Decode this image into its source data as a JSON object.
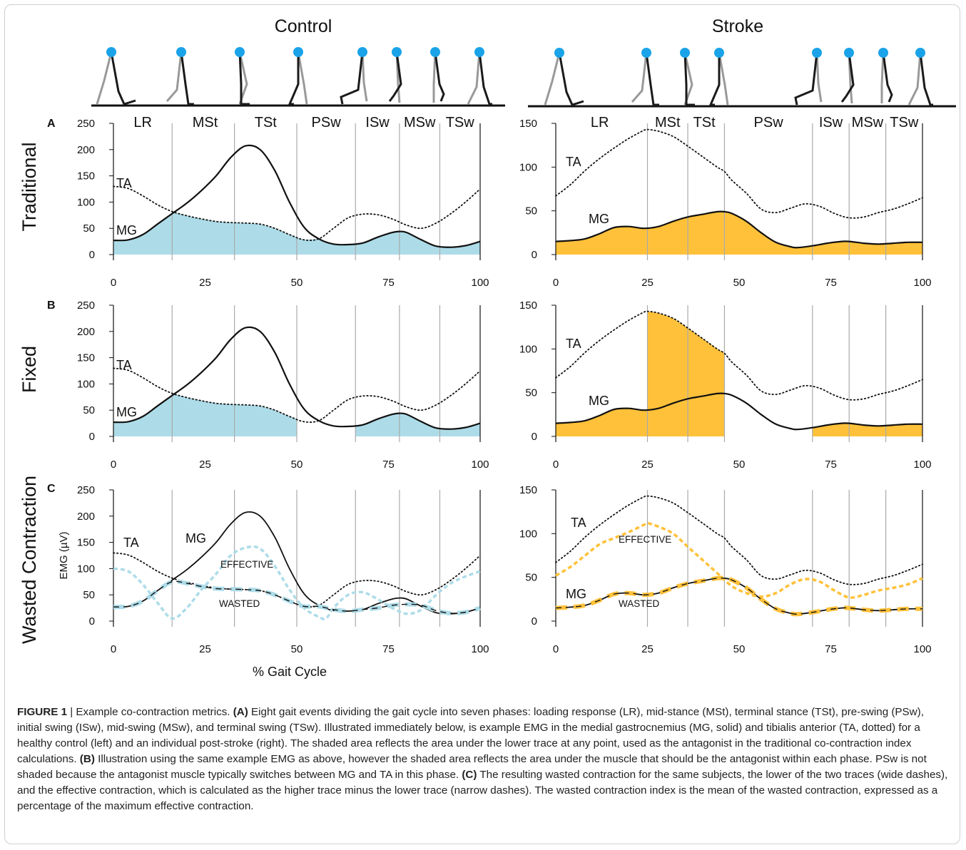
{
  "figure": {
    "column_titles": [
      "Control",
      "Stroke"
    ],
    "row_titles": [
      "Traditional",
      "Fixed",
      "Wasted Contraction"
    ],
    "panel_letters": [
      "A",
      "B",
      "C"
    ],
    "xlabel": "% Gait Cycle",
    "ylabel": "EMG (µV)",
    "trace_labels": {
      "ta": "TA",
      "mg": "MG",
      "effective": "EFFECTIVE",
      "wasted": "WASTED"
    },
    "colors": {
      "control_fill": "#ADDCE8",
      "stroke_fill": "#FFC13A",
      "stick_light": "#999999",
      "stick_dark": "#1a1a1a",
      "head": "#1AA3E8",
      "event_line": "#aaaaaa"
    }
  },
  "chart_data": [
    {
      "type": "line",
      "panel": "control",
      "x_ticks": [
        0,
        25,
        50,
        75,
        100
      ],
      "y_ticks": [
        0,
        50,
        100,
        150,
        200,
        250
      ],
      "xlim": [
        0,
        100
      ],
      "ylim": [
        0,
        250
      ],
      "gait_events": [
        16,
        33,
        50,
        66,
        78,
        89
      ],
      "phases": [
        {
          "label": "LR",
          "center": 8
        },
        {
          "label": "MSt",
          "center": 25
        },
        {
          "label": "TSt",
          "center": 41.5
        },
        {
          "label": "PSw",
          "center": 58
        },
        {
          "label": "ISw",
          "center": 72
        },
        {
          "label": "MSw",
          "center": 83.5
        },
        {
          "label": "TSw",
          "center": 94.5
        }
      ],
      "series": [
        {
          "name": "MG",
          "x": [
            0,
            4,
            8,
            12,
            16,
            20,
            24,
            28,
            32,
            36,
            40,
            44,
            48,
            52,
            56,
            60,
            64,
            68,
            72,
            76,
            78,
            80,
            84,
            88,
            92,
            96,
            100
          ],
          "y": [
            27,
            28,
            38,
            58,
            78,
            98,
            122,
            150,
            185,
            207,
            200,
            160,
            100,
            52,
            30,
            20,
            19,
            22,
            33,
            42,
            44,
            42,
            28,
            16,
            14,
            17,
            25
          ]
        },
        {
          "name": "TA",
          "x": [
            0,
            4,
            8,
            12,
            16,
            20,
            24,
            28,
            32,
            36,
            40,
            44,
            48,
            52,
            56,
            60,
            64,
            68,
            72,
            76,
            80,
            84,
            88,
            92,
            96,
            100
          ],
          "y": [
            130,
            126,
            112,
            95,
            82,
            74,
            68,
            63,
            61,
            60,
            58,
            50,
            38,
            28,
            30,
            50,
            70,
            77,
            76,
            68,
            56,
            50,
            60,
            78,
            100,
            125
          ]
        },
        {
          "name": "EFFECTIVE",
          "x": [
            0,
            4,
            8,
            12,
            16,
            20,
            24,
            28,
            32,
            36,
            40,
            44,
            48,
            52,
            56,
            58,
            60,
            64,
            68,
            72,
            76,
            80,
            84,
            88,
            92,
            96,
            100
          ],
          "y": [
            100,
            95,
            70,
            35,
            5,
            25,
            60,
            90,
            125,
            140,
            138,
            105,
            60,
            25,
            8,
            5,
            25,
            50,
            55,
            42,
            25,
            14,
            22,
            50,
            72,
            85,
            95
          ]
        },
        {
          "name": "WASTED",
          "x": [
            0,
            4,
            8,
            12,
            16,
            20,
            24,
            28,
            32,
            36,
            40,
            44,
            48,
            52,
            56,
            60,
            64,
            68,
            72,
            76,
            80,
            84,
            88,
            92,
            96,
            100
          ],
          "y": [
            27,
            28,
            38,
            58,
            75,
            72,
            66,
            62,
            61,
            60,
            58,
            50,
            38,
            28,
            28,
            22,
            19,
            22,
            25,
            30,
            32,
            30,
            20,
            15,
            17,
            25
          ]
        }
      ],
      "fills": {
        "traditional": [
          [
            0,
            100
          ]
        ],
        "fixed": [
          [
            0,
            50
          ],
          [
            66,
            100
          ]
        ]
      }
    },
    {
      "type": "line",
      "panel": "stroke",
      "x_ticks": [
        0,
        25,
        50,
        75,
        100
      ],
      "y_ticks": [
        0,
        50,
        100,
        150
      ],
      "xlim": [
        0,
        100
      ],
      "ylim": [
        0,
        150
      ],
      "gait_events": [
        25,
        36,
        46,
        70,
        80,
        90
      ],
      "phases": [
        {
          "label": "LR",
          "center": 12
        },
        {
          "label": "MSt",
          "center": 30.5
        },
        {
          "label": "TSt",
          "center": 40.5
        },
        {
          "label": "PSw",
          "center": 58
        },
        {
          "label": "ISw",
          "center": 75
        },
        {
          "label": "MSw",
          "center": 85
        },
        {
          "label": "TSw",
          "center": 95
        }
      ],
      "series": [
        {
          "name": "MG",
          "x": [
            0,
            4,
            8,
            12,
            16,
            20,
            24,
            28,
            32,
            36,
            40,
            44,
            46,
            48,
            52,
            56,
            60,
            64,
            66,
            70,
            74,
            78,
            80,
            84,
            88,
            92,
            96,
            100
          ],
          "y": [
            15,
            16,
            18,
            24,
            31,
            32,
            30,
            32,
            38,
            43,
            46,
            49,
            49,
            47,
            38,
            25,
            14,
            9,
            8,
            10,
            13,
            15,
            15,
            13,
            12,
            13,
            14,
            14
          ]
        },
        {
          "name": "TA",
          "x": [
            0,
            4,
            8,
            12,
            16,
            20,
            24,
            25,
            28,
            32,
            36,
            40,
            44,
            46,
            48,
            52,
            56,
            60,
            64,
            68,
            72,
            76,
            80,
            84,
            88,
            92,
            96,
            100
          ],
          "y": [
            67,
            80,
            96,
            110,
            122,
            133,
            142,
            143,
            141,
            135,
            124,
            112,
            100,
            95,
            85,
            70,
            52,
            48,
            53,
            58,
            55,
            47,
            42,
            43,
            48,
            52,
            58,
            65
          ]
        },
        {
          "name": "EFFECTIVE",
          "x": [
            0,
            4,
            8,
            12,
            16,
            20,
            24,
            25,
            28,
            32,
            36,
            40,
            44,
            48,
            52,
            56,
            60,
            64,
            68,
            72,
            76,
            80,
            84,
            88,
            92,
            96,
            100
          ],
          "y": [
            52,
            62,
            75,
            88,
            95,
            102,
            110,
            112,
            108,
            100,
            85,
            70,
            55,
            40,
            32,
            28,
            32,
            42,
            48,
            45,
            35,
            27,
            30,
            35,
            38,
            42,
            49
          ]
        },
        {
          "name": "WASTED",
          "x": [
            0,
            4,
            8,
            12,
            16,
            20,
            24,
            28,
            32,
            36,
            40,
            44,
            46,
            48,
            52,
            56,
            60,
            64,
            66,
            70,
            74,
            78,
            80,
            84,
            88,
            92,
            96,
            100
          ],
          "y": [
            15,
            16,
            18,
            24,
            31,
            32,
            30,
            32,
            38,
            43,
            46,
            49,
            49,
            47,
            38,
            25,
            14,
            9,
            8,
            10,
            13,
            15,
            15,
            13,
            12,
            13,
            14,
            14
          ]
        }
      ],
      "fills": {
        "traditional": [
          [
            0,
            100
          ]
        ],
        "fixed_mg": [
          [
            0,
            25
          ],
          [
            70,
            100
          ]
        ],
        "fixed_ta": [
          [
            25,
            46
          ]
        ]
      }
    }
  ],
  "caption": {
    "figure_label": "FIGURE 1",
    "intro": " | Example co-contraction metrics. ",
    "a_label": "(A)",
    "a_text": " Eight gait events dividing the gait cycle into seven phases: loading response (LR), mid-stance (MSt), terminal stance (TSt), pre-swing (PSw), initial swing (ISw), mid-swing (MSw), and terminal swing (TSw). Illustrated immediately below, is example EMG in the medial gastrocnemius (MG, solid) and tibialis anterior (TA, dotted) for a healthy control (left) and an individual post-stroke (right). The shaded area reflects the area under the lower trace at any point, used as the antagonist in the traditional co-contraction index calculations. ",
    "b_label": "(B)",
    "b_text": " Illustration using the same example EMG as above, however the shaded area reflects the area under the muscle that should be the antagonist within each phase. PSw is not shaded because the antagonist muscle typically switches between MG and TA in this phase. ",
    "c_label": "(C)",
    "c_text": " The resulting wasted contraction for the same subjects, the lower of the two traces (wide dashes), and the effective contraction, which is calculated as the higher trace minus the lower trace (narrow dashes). The wasted contraction index is the mean of the wasted contraction, expressed as a percentage of the maximum effective contraction."
  }
}
